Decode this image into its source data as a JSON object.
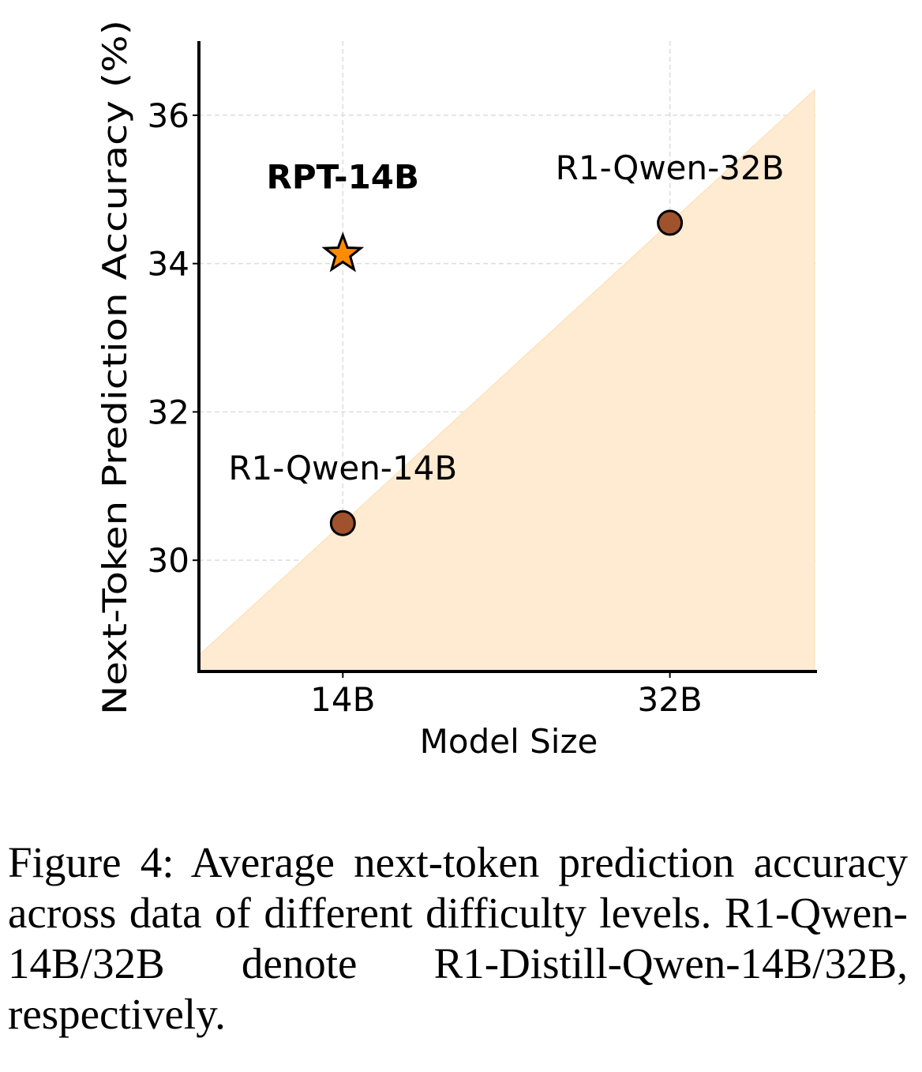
{
  "chart_data": {
    "type": "scatter",
    "title": "",
    "xlabel": "Model Size",
    "ylabel": "Next-Token Prediction Accuracy (%)",
    "categories": [
      "14B",
      "32B"
    ],
    "xlim": [
      -0.44,
      1.445
    ],
    "ylim": [
      28.5,
      37.0
    ],
    "yticks": [
      30,
      32,
      34,
      36
    ],
    "grid": true,
    "points": [
      {
        "name": "R1-Qwen-14B",
        "x": 0,
        "y": 30.5,
        "marker": "circle",
        "color": "#a0522d",
        "label_bold": false
      },
      {
        "name": "R1-Qwen-32B",
        "x": 1,
        "y": 34.55,
        "marker": "circle",
        "color": "#a0522d",
        "label_bold": false
      },
      {
        "name": "RPT-14B",
        "x": 0,
        "y": 34.15,
        "marker": "star",
        "color": "#ff8c00",
        "label_bold": true
      }
    ],
    "shaded_region": {
      "description": "area below the line through R1-Qwen-14B and R1-Qwen-32B",
      "color": "#ffebd1"
    }
  },
  "caption": "Figure 4: Average next-token prediction accuracy across data of different difficulty levels.  R1-Qwen-14B/32B denote R1-Distill-Qwen-14B/32B, respectively."
}
